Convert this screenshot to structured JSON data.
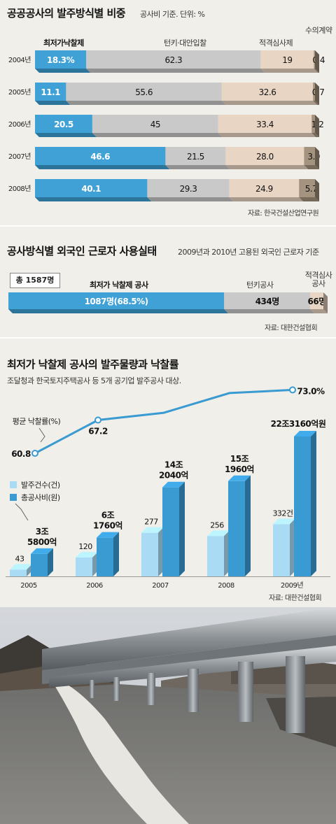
{
  "chart_data": [
    {
      "type": "bar",
      "stacked": true,
      "orientation": "horizontal",
      "title": "공공공사의 발주방식별 비중",
      "subtitle": "공사비 기준. 단위: %",
      "categories": [
        "2004년",
        "2005년",
        "2006년",
        "2007년",
        "2008년"
      ],
      "series": [
        {
          "name": "최저가낙찰제",
          "values": [
            18.3,
            11.1,
            20.5,
            46.6,
            40.1
          ],
          "labels": [
            "18.3%",
            "11.1",
            "20.5",
            "46.6",
            "40.1"
          ],
          "color": "#3fa1d6"
        },
        {
          "name": "턴키·대안입찰",
          "values": [
            62.3,
            55.6,
            45,
            21.5,
            29.3
          ],
          "labels": [
            "62.3",
            "55.6",
            "45",
            "21.5",
            "29.3"
          ],
          "color": "#c9c9c9"
        },
        {
          "name": "적격심사제",
          "values": [
            19,
            32.6,
            33.4,
            28.0,
            24.9
          ],
          "labels": [
            "19",
            "32.6",
            "33.4",
            "28.0",
            "24.9"
          ],
          "color": "#e9d5c4"
        },
        {
          "name": "수의계약",
          "values": [
            0.4,
            0.7,
            1.2,
            3.9,
            5.7
          ],
          "labels": [
            "0.4",
            "0.7",
            "1.2",
            "3.9",
            "5.7"
          ],
          "color": "#a4937f"
        }
      ],
      "source": "자료: 한국건설산업연구원"
    },
    {
      "type": "bar",
      "stacked": true,
      "orientation": "horizontal",
      "title": "공사방식별 외국인 근로자 사용실태",
      "subtitle": "2009년과 2010년 고용된 외국인 근로자 기준",
      "total_label": "총 1587명",
      "segments": [
        {
          "name": "최저가 낙찰제 공사",
          "value": 1087,
          "label": "1087명(68.5%)",
          "color": "#3fa1d6"
        },
        {
          "name": "턴키공사",
          "value": 434,
          "label": "434명",
          "color": "#c9c9c9"
        },
        {
          "name_lines": [
            "적격심사",
            "공사"
          ],
          "value": 66,
          "label": "66명",
          "color": "#e9d5c4"
        }
      ],
      "source": "자료: 대한건설협회"
    },
    {
      "type": "bar+line",
      "title": "최저가 낙찰제 공사의 발주물량과 낙찰률",
      "subtitle": "조달청과 한국토지주택공사 등 5개 공기업 발주공사 대상.",
      "categories": [
        "2005",
        "2006",
        "2007",
        "2008",
        "2009년"
      ],
      "line": {
        "name": "평균 낙찰률(%)",
        "values": [
          60.8,
          67.2,
          68.6,
          72.4,
          73.0
        ],
        "labels": [
          "60.8",
          "67.2",
          "",
          "",
          "73.0%"
        ]
      },
      "series": [
        {
          "name": "발주건수(건)",
          "values": [
            43,
            120,
            277,
            256,
            332
          ],
          "labels": [
            "43",
            "120",
            "277",
            "256",
            "332건"
          ],
          "color": "#a9dbf5"
        },
        {
          "name": "총공사비(원)",
          "values": [
            3.58,
            6.176,
            14.204,
            15.196,
            22.316
          ],
          "unit": "조원",
          "labels": [
            [
              "3조",
              "5800억"
            ],
            [
              "6조",
              "1760억"
            ],
            [
              "14조",
              "2040억"
            ],
            [
              "15조",
              "1960억"
            ],
            [
              "22조3160억원"
            ]
          ],
          "color": "#3a9ad2"
        }
      ],
      "source": "자료: 대한건설협회"
    }
  ],
  "photo": {
    "description_icon": "guardrail-road-photo"
  }
}
